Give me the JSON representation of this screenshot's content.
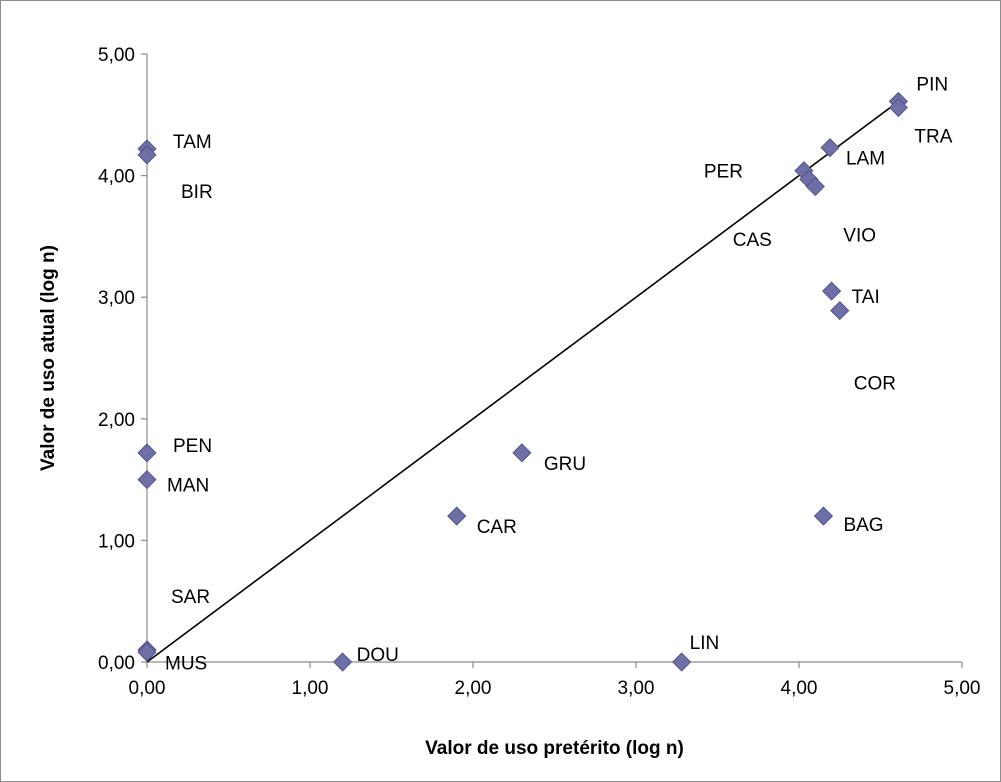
{
  "chart_data": {
    "type": "scatter",
    "title": "",
    "xlabel": "Valor de uso pretérito (log n)",
    "ylabel": "Valor de uso atual (log n)",
    "xlim": [
      0,
      5
    ],
    "ylim": [
      0,
      5
    ],
    "x_ticks": [
      "0,00",
      "1,00",
      "2,00",
      "3,00",
      "4,00",
      "5,00"
    ],
    "y_ticks": [
      "0,00",
      "1,00",
      "2,00",
      "3,00",
      "4,00",
      "5,00"
    ],
    "grid": false,
    "legend": "none",
    "marker_color": "#6f6fa8",
    "marker_edge": "#4a4a80",
    "trendline": {
      "from": [
        0,
        0
      ],
      "to": [
        4.6,
        4.6
      ]
    },
    "points": [
      {
        "label": "PIN",
        "x": 4.61,
        "y": 4.61
      },
      {
        "label": "TRA",
        "x": 4.61,
        "y": 4.56
      },
      {
        "label": "LAM",
        "x": 4.19,
        "y": 4.23
      },
      {
        "label": "PER",
        "x": 4.03,
        "y": 4.04
      },
      {
        "label": "CAS",
        "x": 4.06,
        "y": 3.97
      },
      {
        "label": "VIO",
        "x": 4.1,
        "y": 3.91
      },
      {
        "label": "TAI",
        "x": 4.2,
        "y": 3.05
      },
      {
        "label": "COR",
        "x": 4.25,
        "y": 2.89
      },
      {
        "label": "TAM",
        "x": 0.0,
        "y": 4.22
      },
      {
        "label": "BIR",
        "x": 0.0,
        "y": 4.17
      },
      {
        "label": "PEN",
        "x": 0.0,
        "y": 1.72
      },
      {
        "label": "MAN",
        "x": 0.0,
        "y": 1.5
      },
      {
        "label": "SAR",
        "x": 0.0,
        "y": 0.1
      },
      {
        "label": "MUS",
        "x": 0.0,
        "y": 0.08
      },
      {
        "label": "GRU",
        "x": 2.3,
        "y": 1.72
      },
      {
        "label": "CAR",
        "x": 1.9,
        "y": 1.2
      },
      {
        "label": "BAG",
        "x": 4.15,
        "y": 1.2
      },
      {
        "label": "DOU",
        "x": 1.2,
        "y": 0.0
      },
      {
        "label": "LIN",
        "x": 3.28,
        "y": 0.0
      }
    ]
  }
}
